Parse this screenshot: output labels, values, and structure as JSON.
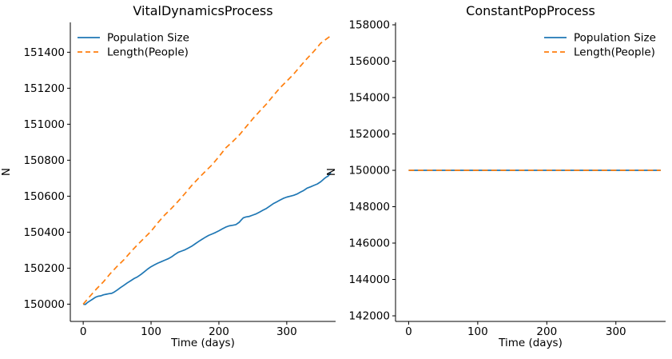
{
  "figure": {
    "background": "#ffffff",
    "text_color": "#000000"
  },
  "chart_data": [
    {
      "type": "line",
      "title": "VitalDynamicsProcess",
      "xlabel": "Time (days)",
      "ylabel": "N",
      "xlim": [
        -19,
        372
      ],
      "ylim": [
        149904,
        151566
      ],
      "grid": false,
      "xticks": [
        0,
        100,
        200,
        300
      ],
      "xtick_labels": [
        "0",
        "100",
        "200",
        "300"
      ],
      "yticks": [
        150000,
        150200,
        150400,
        150600,
        150800,
        151000,
        151200,
        151400
      ],
      "ytick_labels": [
        "150000",
        "150200",
        "150400",
        "150600",
        "150800",
        "151000",
        "151200",
        "151400"
      ],
      "legend": {
        "position": "upper left",
        "entries": [
          "Population Size",
          "Length(People)"
        ]
      },
      "series": [
        {
          "name": "Population Size",
          "color": "#1f77b4",
          "style": "solid",
          "x": [
            0,
            3,
            6,
            10,
            14,
            18,
            22,
            26,
            30,
            34,
            38,
            42,
            46,
            50,
            55,
            60,
            65,
            70,
            75,
            80,
            85,
            90,
            95,
            100,
            105,
            110,
            115,
            120,
            125,
            130,
            135,
            140,
            145,
            150,
            155,
            160,
            165,
            170,
            175,
            180,
            185,
            190,
            195,
            200,
            205,
            210,
            215,
            220,
            225,
            230,
            233,
            236,
            240,
            245,
            250,
            255,
            260,
            265,
            270,
            275,
            280,
            285,
            290,
            295,
            300,
            305,
            310,
            315,
            320,
            325,
            330,
            335,
            340,
            345,
            350,
            353,
            356,
            359,
            361,
            363,
            365
          ],
          "y": [
            150000,
            149998,
            150008,
            150018,
            150028,
            150038,
            150044,
            150046,
            150052,
            150055,
            150058,
            150060,
            150068,
            150078,
            150092,
            150105,
            150118,
            150130,
            150142,
            150152,
            150165,
            150180,
            150195,
            150208,
            150218,
            150228,
            150236,
            150244,
            150252,
            150262,
            150276,
            150288,
            150295,
            150302,
            150312,
            150322,
            150335,
            150348,
            150360,
            150372,
            150382,
            150390,
            150398,
            150408,
            150418,
            150428,
            150435,
            150438,
            150442,
            150455,
            150468,
            150480,
            150485,
            150488,
            150495,
            150502,
            150512,
            150522,
            150532,
            150545,
            150558,
            150568,
            150578,
            150588,
            150595,
            150600,
            150605,
            150612,
            150622,
            150632,
            150645,
            150652,
            150660,
            150668,
            150680,
            150690,
            150700,
            150708,
            150712,
            150722,
            150732
          ]
        },
        {
          "name": "Length(People)",
          "color": "#ff7f0e",
          "style": "dashed",
          "x": [
            0,
            10,
            20,
            30,
            40,
            50,
            60,
            70,
            80,
            90,
            100,
            110,
            120,
            130,
            140,
            150,
            160,
            170,
            180,
            190,
            200,
            210,
            220,
            230,
            240,
            250,
            260,
            270,
            280,
            290,
            300,
            310,
            320,
            330,
            340,
            350,
            360,
            365
          ],
          "y": [
            150000,
            150044,
            150086,
            150125,
            150170,
            150210,
            150247,
            150290,
            150330,
            150368,
            150405,
            150452,
            150495,
            150532,
            150572,
            150615,
            150660,
            150700,
            150738,
            150775,
            150820,
            150868,
            150902,
            150940,
            150985,
            151030,
            151072,
            151112,
            151158,
            151202,
            151240,
            151278,
            151322,
            151365,
            151405,
            151450,
            151478,
            151492
          ]
        }
      ]
    },
    {
      "type": "line",
      "title": "ConstantPopProcess",
      "xlabel": "Time (days)",
      "ylabel": "N",
      "xlim": [
        -19,
        372
      ],
      "ylim": [
        141693,
        158133
      ],
      "grid": false,
      "xticks": [
        0,
        100,
        200,
        300
      ],
      "xtick_labels": [
        "0",
        "100",
        "200",
        "300"
      ],
      "yticks": [
        142000,
        144000,
        146000,
        148000,
        150000,
        152000,
        154000,
        156000,
        158000
      ],
      "ytick_labels": [
        "142000",
        "144000",
        "146000",
        "148000",
        "150000",
        "152000",
        "154000",
        "156000",
        "158000"
      ],
      "legend": {
        "position": "upper right",
        "entries": [
          "Population Size",
          "Length(People)"
        ]
      },
      "series": [
        {
          "name": "Population Size",
          "color": "#1f77b4",
          "style": "solid",
          "x": [
            0,
            365
          ],
          "y": [
            150000,
            150000
          ]
        },
        {
          "name": "Length(People)",
          "color": "#ff7f0e",
          "style": "dashed",
          "x": [
            0,
            365
          ],
          "y": [
            150000,
            150000
          ]
        }
      ]
    }
  ]
}
